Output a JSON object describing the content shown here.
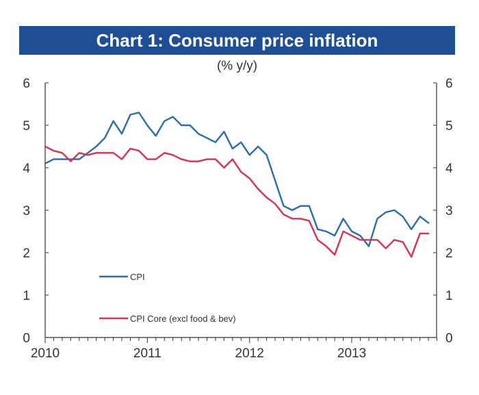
{
  "title": "Chart 1: Consumer price inflation",
  "subtitle": "(% y/y)",
  "colors": {
    "title_bg": "#1e4f95",
    "cpi": "#2a6cad",
    "core": "#d9314f",
    "axis": "#333333"
  },
  "chart_data": {
    "type": "line",
    "ylim": [
      0,
      6
    ],
    "y_ticks": [
      "0",
      "1",
      "2",
      "3",
      "4",
      "5",
      "6"
    ],
    "xlim": [
      2010,
      2013.83
    ],
    "x_ticks": [
      {
        "value": 2010,
        "label": "2010"
      },
      {
        "value": 2011,
        "label": "2011"
      },
      {
        "value": 2012,
        "label": "2012"
      },
      {
        "value": 2013,
        "label": "2013"
      }
    ],
    "grid": false,
    "legend_position": "bottom-left",
    "series": [
      {
        "name": "CPI",
        "color": "#2a6cad",
        "x": [
          2010.0,
          2010.083,
          2010.167,
          2010.25,
          2010.333,
          2010.417,
          2010.5,
          2010.583,
          2010.667,
          2010.75,
          2010.833,
          2010.917,
          2011.0,
          2011.083,
          2011.167,
          2011.25,
          2011.333,
          2011.417,
          2011.5,
          2011.583,
          2011.667,
          2011.75,
          2011.833,
          2011.917,
          2012.0,
          2012.083,
          2012.167,
          2012.25,
          2012.333,
          2012.417,
          2012.5,
          2012.583,
          2012.667,
          2012.75,
          2012.833,
          2012.917,
          2013.0,
          2013.083,
          2013.167,
          2013.25,
          2013.333,
          2013.417,
          2013.5,
          2013.583,
          2013.667,
          2013.75
        ],
        "y": [
          4.1,
          4.2,
          4.2,
          4.2,
          4.2,
          4.35,
          4.5,
          4.7,
          5.1,
          4.8,
          5.25,
          5.3,
          5.0,
          4.75,
          5.1,
          5.2,
          5.0,
          5.0,
          4.8,
          4.7,
          4.6,
          4.85,
          4.45,
          4.6,
          4.3,
          4.5,
          4.3,
          3.7,
          3.1,
          3.0,
          3.1,
          3.1,
          2.55,
          2.5,
          2.4,
          2.8,
          2.5,
          2.4,
          2.15,
          2.8,
          2.95,
          3.0,
          2.85,
          2.55,
          2.85,
          2.7
        ]
      },
      {
        "name": "CPI Core (excl food & bev)",
        "color": "#d9314f",
        "x": [
          2010.0,
          2010.083,
          2010.167,
          2010.25,
          2010.333,
          2010.417,
          2010.5,
          2010.583,
          2010.667,
          2010.75,
          2010.833,
          2010.917,
          2011.0,
          2011.083,
          2011.167,
          2011.25,
          2011.333,
          2011.417,
          2011.5,
          2011.583,
          2011.667,
          2011.75,
          2011.833,
          2011.917,
          2012.0,
          2012.083,
          2012.167,
          2012.25,
          2012.333,
          2012.417,
          2012.5,
          2012.583,
          2012.667,
          2012.75,
          2012.833,
          2012.917,
          2013.0,
          2013.083,
          2013.167,
          2013.25,
          2013.333,
          2013.417,
          2013.5,
          2013.583,
          2013.667,
          2013.75
        ],
        "y": [
          4.5,
          4.4,
          4.35,
          4.15,
          4.35,
          4.3,
          4.35,
          4.35,
          4.35,
          4.2,
          4.45,
          4.4,
          4.2,
          4.2,
          4.35,
          4.3,
          4.2,
          4.15,
          4.15,
          4.2,
          4.2,
          4.0,
          4.2,
          3.9,
          3.75,
          3.5,
          3.3,
          3.15,
          2.9,
          2.8,
          2.8,
          2.75,
          2.3,
          2.15,
          1.95,
          2.5,
          2.4,
          2.3,
          2.3,
          2.3,
          2.1,
          2.3,
          2.25,
          1.9,
          2.45,
          2.45
        ]
      }
    ]
  }
}
